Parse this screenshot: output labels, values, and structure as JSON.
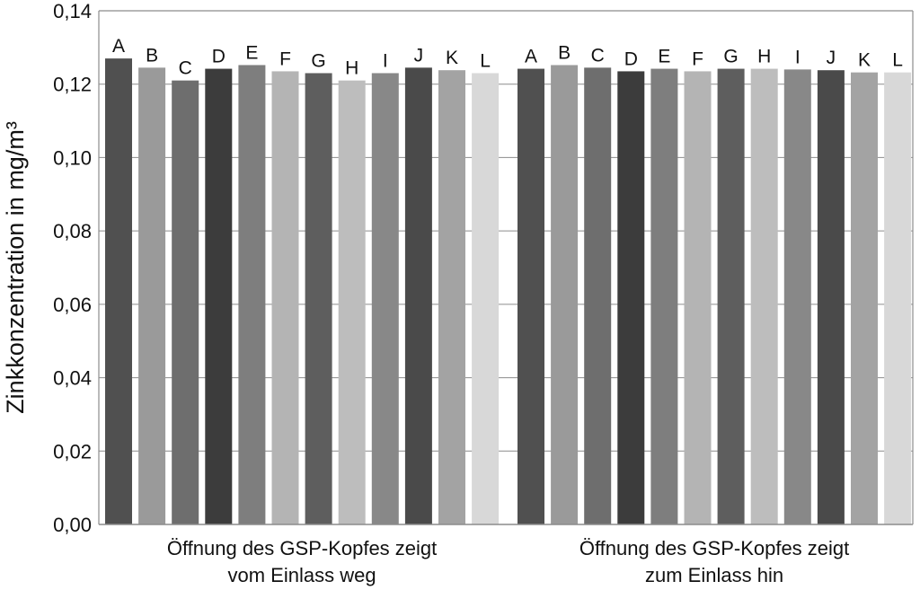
{
  "chart_data": {
    "type": "bar",
    "ylabel": "Zinkkonzentration in mg/m³",
    "ylim": [
      0,
      0.14
    ],
    "yticks": [
      0,
      0.02,
      0.04,
      0.06,
      0.08,
      0.1,
      0.12,
      0.14
    ],
    "ytick_labels": [
      "0,00",
      "0,02",
      "0,04",
      "0,06",
      "0,08",
      "0,10",
      "0,12",
      "0,14"
    ],
    "grid": true,
    "groups": [
      {
        "label_lines": [
          "Öffnung des GSP-Kopfes zeigt",
          "vom Einlass weg"
        ],
        "categories": [
          "A",
          "B",
          "C",
          "D",
          "E",
          "F",
          "G",
          "H",
          "I",
          "J",
          "K",
          "L"
        ],
        "values": [
          0.127,
          0.1245,
          0.121,
          0.1242,
          0.1252,
          0.1235,
          0.123,
          0.121,
          0.123,
          0.1245,
          0.1238,
          0.123
        ],
        "colors": [
          "#505050",
          "#9a9a9a",
          "#6e6e6e",
          "#3c3c3c",
          "#7e7e7e",
          "#b4b4b4",
          "#5e5e5e",
          "#bdbdbd",
          "#888888",
          "#4a4a4a",
          "#a3a3a3",
          "#d8d8d8"
        ]
      },
      {
        "label_lines": [
          "Öffnung des GSP-Kopfes zeigt",
          "zum Einlass hin"
        ],
        "categories": [
          "A",
          "B",
          "C",
          "D",
          "E",
          "F",
          "G",
          "H",
          "I",
          "J",
          "K",
          "L"
        ],
        "values": [
          0.1242,
          0.1252,
          0.1245,
          0.1235,
          0.1242,
          0.1235,
          0.1242,
          0.1242,
          0.124,
          0.1238,
          0.1232,
          0.1232
        ],
        "colors": [
          "#505050",
          "#9a9a9a",
          "#6e6e6e",
          "#3c3c3c",
          "#7e7e7e",
          "#b4b4b4",
          "#5e5e5e",
          "#bdbdbd",
          "#888888",
          "#4a4a4a",
          "#a3a3a3",
          "#d8d8d8"
        ]
      }
    ]
  }
}
